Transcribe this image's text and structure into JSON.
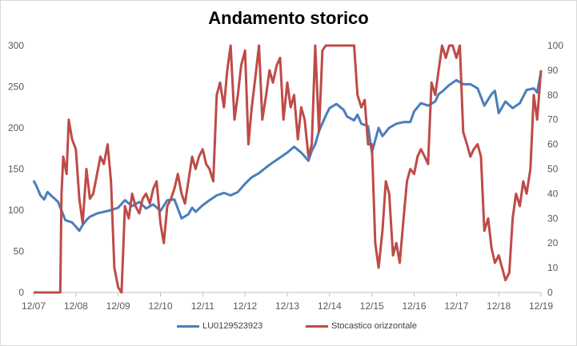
{
  "chart_data": {
    "type": "line",
    "title": "Andamento storico",
    "xlabel": "",
    "ylabel": "",
    "x_ticks": [
      "12/07",
      "12/08",
      "12/09",
      "12/10",
      "12/11",
      "12/12",
      "12/13",
      "12/14",
      "12/15",
      "12/16",
      "12/17",
      "12/18",
      "12/19"
    ],
    "ylim_left": [
      0,
      300
    ],
    "yticks_left": [
      0,
      50,
      100,
      150,
      200,
      250,
      300
    ],
    "ylim_right": [
      0,
      100
    ],
    "yticks_right": [
      0,
      10,
      20,
      30,
      40,
      50,
      60,
      70,
      80,
      90,
      100
    ],
    "grid": false,
    "legend_position": "bottom",
    "series": [
      {
        "name": "LU0129523923",
        "axis": "left",
        "color": "#4a7ebb",
        "x": [
          2007.92,
          2008.0,
          2008.08,
          2008.17,
          2008.25,
          2008.33,
          2008.5,
          2008.67,
          2008.83,
          2008.92,
          2009.0,
          2009.08,
          2009.17,
          2009.25,
          2009.42,
          2009.58,
          2009.75,
          2009.92,
          2010.08,
          2010.25,
          2010.42,
          2010.58,
          2010.75,
          2010.92,
          2011.08,
          2011.25,
          2011.42,
          2011.58,
          2011.67,
          2011.75,
          2011.92,
          2012.08,
          2012.25,
          2012.42,
          2012.58,
          2012.75,
          2012.92,
          2013.08,
          2013.25,
          2013.42,
          2013.58,
          2013.75,
          2013.92,
          2014.08,
          2014.25,
          2014.42,
          2014.5,
          2014.58,
          2014.67,
          2014.83,
          2014.92,
          2015.08,
          2015.25,
          2015.33,
          2015.5,
          2015.58,
          2015.67,
          2015.83,
          2015.92,
          2016.08,
          2016.17,
          2016.33,
          2016.5,
          2016.67,
          2016.83,
          2016.92,
          2017.08,
          2017.25,
          2017.42,
          2017.5,
          2017.58,
          2017.75,
          2017.92,
          2018.08,
          2018.25,
          2018.42,
          2018.58,
          2018.75,
          2018.83,
          2018.92,
          2019.08,
          2019.25,
          2019.42,
          2019.58,
          2019.75,
          2019.83,
          2019.92
        ],
        "values": [
          136,
          128,
          118,
          113,
          122,
          118,
          110,
          88,
          85,
          80,
          75,
          82,
          88,
          92,
          96,
          98,
          100,
          103,
          112,
          105,
          110,
          102,
          107,
          99,
          112,
          113,
          90,
          95,
          103,
          98,
          106,
          112,
          118,
          121,
          118,
          122,
          132,
          140,
          145,
          152,
          158,
          164,
          170,
          177,
          170,
          160,
          172,
          180,
          196,
          215,
          224,
          229,
          222,
          214,
          209,
          216,
          205,
          202,
          170,
          200,
          190,
          200,
          205,
          207,
          207,
          220,
          230,
          227,
          232,
          241,
          244,
          252,
          258,
          253,
          253,
          248,
          227,
          241,
          245,
          218,
          232,
          224,
          230,
          246,
          248,
          243,
          268
        ]
      },
      {
        "name": "Stocastico orizzontale",
        "axis": "right",
        "color": "#be4b48",
        "x": [
          2007.92,
          2008.0,
          2008.17,
          2008.33,
          2008.55,
          2008.58,
          2008.62,
          2008.7,
          2008.75,
          2008.83,
          2008.92,
          2009.0,
          2009.08,
          2009.17,
          2009.25,
          2009.33,
          2009.42,
          2009.5,
          2009.58,
          2009.67,
          2009.75,
          2009.83,
          2009.92,
          2010.0,
          2010.08,
          2010.17,
          2010.25,
          2010.33,
          2010.42,
          2010.5,
          2010.58,
          2010.67,
          2010.75,
          2010.83,
          2010.92,
          2011.0,
          2011.08,
          2011.17,
          2011.25,
          2011.33,
          2011.42,
          2011.5,
          2011.58,
          2011.67,
          2011.75,
          2011.83,
          2011.92,
          2012.0,
          2012.08,
          2012.17,
          2012.25,
          2012.33,
          2012.42,
          2012.5,
          2012.58,
          2012.67,
          2012.75,
          2012.83,
          2012.92,
          2013.0,
          2013.08,
          2013.17,
          2013.25,
          2013.33,
          2013.42,
          2013.5,
          2013.58,
          2013.67,
          2013.75,
          2013.83,
          2013.92,
          2014.0,
          2014.08,
          2014.17,
          2014.25,
          2014.33,
          2014.42,
          2014.5,
          2014.58,
          2014.67,
          2014.75,
          2014.83,
          2014.92,
          2015.0,
          2015.08,
          2015.17,
          2015.25,
          2015.33,
          2015.42,
          2015.5,
          2015.58,
          2015.67,
          2015.75,
          2015.83,
          2015.92,
          2016.0,
          2016.08,
          2016.17,
          2016.25,
          2016.33,
          2016.42,
          2016.5,
          2016.58,
          2016.67,
          2016.75,
          2016.83,
          2016.92,
          2017.0,
          2017.08,
          2017.17,
          2017.25,
          2017.33,
          2017.42,
          2017.5,
          2017.58,
          2017.67,
          2017.75,
          2017.83,
          2017.92,
          2018.0,
          2018.08,
          2018.17,
          2018.25,
          2018.33,
          2018.42,
          2018.5,
          2018.58,
          2018.67,
          2018.75,
          2018.83,
          2018.92,
          2019.0,
          2019.08,
          2019.17,
          2019.25,
          2019.33,
          2019.42,
          2019.5,
          2019.58,
          2019.67,
          2019.75,
          2019.83,
          2019.92
        ],
        "values": [
          0,
          0,
          0,
          0,
          0,
          40,
          55,
          48,
          70,
          62,
          58,
          38,
          28,
          50,
          38,
          40,
          48,
          55,
          52,
          60,
          45,
          10,
          2,
          0,
          35,
          30,
          40,
          35,
          32,
          38,
          40,
          36,
          42,
          45,
          28,
          20,
          35,
          38,
          42,
          48,
          40,
          36,
          45,
          55,
          50,
          55,
          58,
          52,
          50,
          45,
          80,
          85,
          75,
          90,
          100,
          70,
          80,
          92,
          98,
          60,
          75,
          88,
          100,
          70,
          80,
          90,
          85,
          92,
          95,
          70,
          85,
          75,
          80,
          62,
          75,
          70,
          55,
          60,
          100,
          65,
          98,
          100,
          100,
          100,
          100,
          100,
          100,
          100,
          100,
          100,
          80,
          75,
          78,
          60,
          60,
          20,
          10,
          25,
          45,
          40,
          15,
          20,
          12,
          30,
          45,
          50,
          48,
          55,
          58,
          55,
          52,
          85,
          80,
          90,
          100,
          95,
          100,
          100,
          95,
          100,
          65,
          60,
          55,
          58,
          60,
          55,
          25,
          30,
          18,
          12,
          15,
          10,
          5,
          8,
          30,
          40,
          35,
          45,
          40,
          50,
          80,
          70,
          90
        ]
      }
    ]
  },
  "legend": {
    "item1": "LU0129523923",
    "item2": "Stocastico orizzontale"
  }
}
